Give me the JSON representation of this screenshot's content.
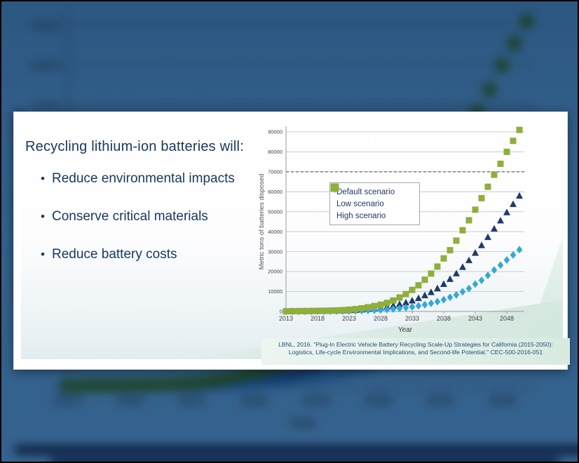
{
  "slide": {
    "title": "Recycling lithium-ion batteries will:",
    "bullet_char": "•",
    "bullets": [
      "Reduce environmental impacts",
      "Conserve critical materials",
      "Reduce battery costs"
    ],
    "citation_line1": "LBNL, 2016. \"Plug-In Electric Vehicle Battery Recycling Scale-Up Strategies for California (2015-2050):",
    "citation_line2": "Logistics, Life-cycle Environmental Implications, and Second-life Potential.\" CEC-500-2016-051"
  },
  "colors": {
    "background_blue": "#32608c",
    "title_navy": "#17375e",
    "legend_navy": "#1f3864",
    "gridline": "#cccccc",
    "axis": "#9a9a9a",
    "threshold_line": "#666666",
    "tick_text": "#404040",
    "citation_bg": "#e3f0e8"
  },
  "chart_data": {
    "type": "scatter",
    "title": "",
    "xlabel": "Year",
    "ylabel": "Metric tons of batteries disposed",
    "grid": true,
    "legend_position": "inside upper-left",
    "x_tick_labels": [
      2013,
      2018,
      2023,
      2028,
      2033,
      2038,
      2043,
      2048
    ],
    "y_ticks": [
      0,
      10000,
      20000,
      30000,
      40000,
      50000,
      60000,
      70000,
      80000,
      90000
    ],
    "ylim": [
      0,
      93000
    ],
    "threshold_line": {
      "y": 70000,
      "style": "dashed"
    },
    "years": [
      2013,
      2014,
      2015,
      2016,
      2017,
      2018,
      2019,
      2020,
      2021,
      2022,
      2023,
      2024,
      2025,
      2026,
      2027,
      2028,
      2029,
      2030,
      2031,
      2032,
      2033,
      2034,
      2035,
      2036,
      2037,
      2038,
      2039,
      2040,
      2041,
      2042,
      2043,
      2044,
      2045,
      2046,
      2047,
      2048,
      2049,
      2050
    ],
    "series": [
      {
        "name": "Default scenario",
        "marker": "triangle",
        "color": "#1e3c6b",
        "values": [
          100,
          120,
          140,
          160,
          190,
          220,
          260,
          320,
          390,
          480,
          600,
          750,
          950,
          1200,
          1500,
          1900,
          2400,
          3000,
          3700,
          4500,
          5500,
          6700,
          8100,
          9700,
          11600,
          13800,
          16300,
          19100,
          22300,
          25700,
          29400,
          33200,
          37300,
          41500,
          45600,
          49700,
          53800,
          58000
        ]
      },
      {
        "name": "Low scenario",
        "marker": "diamond",
        "color": "#35a8d8",
        "values": [
          50,
          60,
          70,
          80,
          95,
          110,
          130,
          160,
          190,
          230,
          280,
          340,
          420,
          520,
          650,
          800,
          1000,
          1250,
          1500,
          1900,
          2300,
          2800,
          3400,
          4100,
          4900,
          5900,
          7100,
          8300,
          9900,
          11500,
          13700,
          15600,
          18100,
          20800,
          23200,
          25800,
          28300,
          31000
        ]
      },
      {
        "name": "High scenario",
        "marker": "square",
        "color": "#8fae3c",
        "values": [
          120,
          150,
          190,
          230,
          270,
          320,
          380,
          450,
          550,
          700,
          900,
          1200,
          1600,
          2100,
          2700,
          3400,
          4300,
          5500,
          7000,
          8700,
          10800,
          13100,
          15900,
          19000,
          22500,
          26600,
          30700,
          35500,
          40700,
          45700,
          51000,
          56800,
          62500,
          68500,
          74000,
          80000,
          85500,
          91000
        ]
      }
    ]
  }
}
